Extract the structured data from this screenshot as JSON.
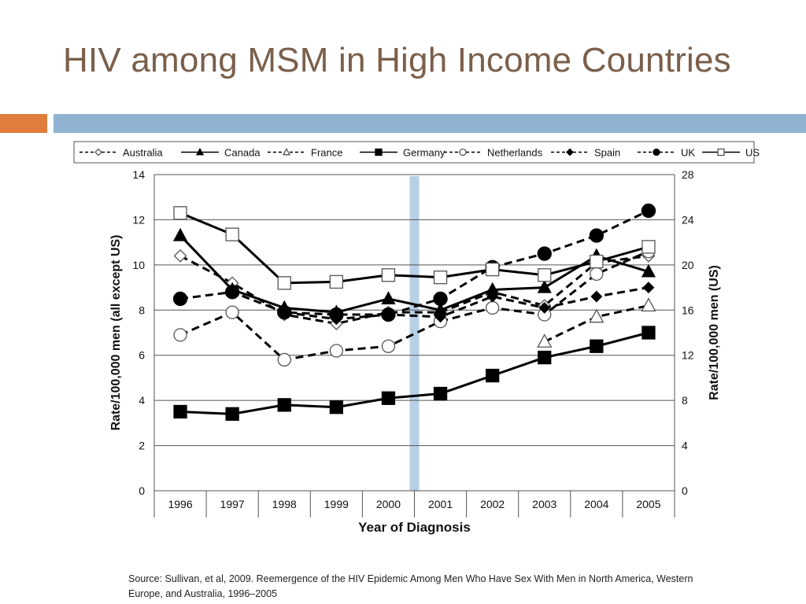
{
  "slide": {
    "title": "HIV among MSM in High Income Countries",
    "source": "Source: Sullivan, et al, 2009.  Reemergence of the HIV Epidemic Among Men Who Have Sex With Men in North America, Western Europe, and Australia, 1996–2005",
    "colors": {
      "title": "#7a5f4b",
      "accent_orange": "#e07d3d",
      "accent_blue": "#8fb3d1",
      "highlight_band": "#b8d0e6"
    }
  },
  "chart_data": {
    "type": "line",
    "xlabel": "Year of Diagnosis",
    "ylabel_left": "Rate/100,000 men (all except US)",
    "ylabel_right": "Rate/100,000 men (US)",
    "categories": [
      "1996",
      "1997",
      "1998",
      "1999",
      "2000",
      "2001",
      "2002",
      "2003",
      "2004",
      "2005"
    ],
    "ylim_left": [
      0,
      14
    ],
    "yticks_left": [
      0,
      2,
      4,
      6,
      8,
      10,
      12,
      14
    ],
    "ylim_right": [
      0,
      28
    ],
    "yticks_right": [
      0,
      4,
      8,
      12,
      16,
      20,
      24,
      28
    ],
    "grid": true,
    "legend_position": "top",
    "highlight_between": [
      "2000",
      "2001"
    ],
    "series": [
      {
        "name": "Australia",
        "axis": "left",
        "dashed": true,
        "marker": "diamond-open",
        "values": [
          10.4,
          9.2,
          7.8,
          7.4,
          7.9,
          7.9,
          8.8,
          8.2,
          10.1,
          10.4
        ]
      },
      {
        "name": "Canada",
        "axis": "left",
        "dashed": false,
        "marker": "triangle-filled",
        "values": [
          11.3,
          8.9,
          8.1,
          7.9,
          8.5,
          8.0,
          8.9,
          9.0,
          10.4,
          9.7
        ]
      },
      {
        "name": "France",
        "axis": "left",
        "dashed": true,
        "marker": "triangle-open",
        "values": [
          null,
          null,
          null,
          null,
          null,
          null,
          null,
          6.6,
          7.7,
          8.2
        ]
      },
      {
        "name": "Germany",
        "axis": "left",
        "dashed": false,
        "marker": "square-filled",
        "values": [
          3.5,
          3.4,
          3.8,
          3.7,
          4.1,
          4.3,
          5.1,
          5.9,
          6.4,
          7.0
        ]
      },
      {
        "name": "Netherlands",
        "axis": "left",
        "dashed": true,
        "marker": "circle-open",
        "values": [
          6.9,
          7.9,
          5.8,
          6.2,
          6.4,
          7.5,
          8.1,
          7.8,
          9.6,
          10.6
        ]
      },
      {
        "name": "Spain",
        "axis": "left",
        "dashed": true,
        "marker": "diamond-filled",
        "values": [
          null,
          null,
          7.9,
          7.6,
          7.8,
          7.7,
          8.6,
          8.1,
          8.6,
          9.0
        ]
      },
      {
        "name": "UK",
        "axis": "left",
        "dashed": true,
        "marker": "circle-filled",
        "values": [
          8.5,
          8.8,
          7.9,
          7.8,
          7.8,
          8.5,
          9.9,
          10.5,
          11.3,
          12.4
        ]
      },
      {
        "name": "US",
        "axis": "right",
        "dashed": false,
        "marker": "square-open",
        "values": [
          24.6,
          22.7,
          18.4,
          18.5,
          19.1,
          18.9,
          19.6,
          19.1,
          20.3,
          21.6
        ]
      }
    ]
  }
}
